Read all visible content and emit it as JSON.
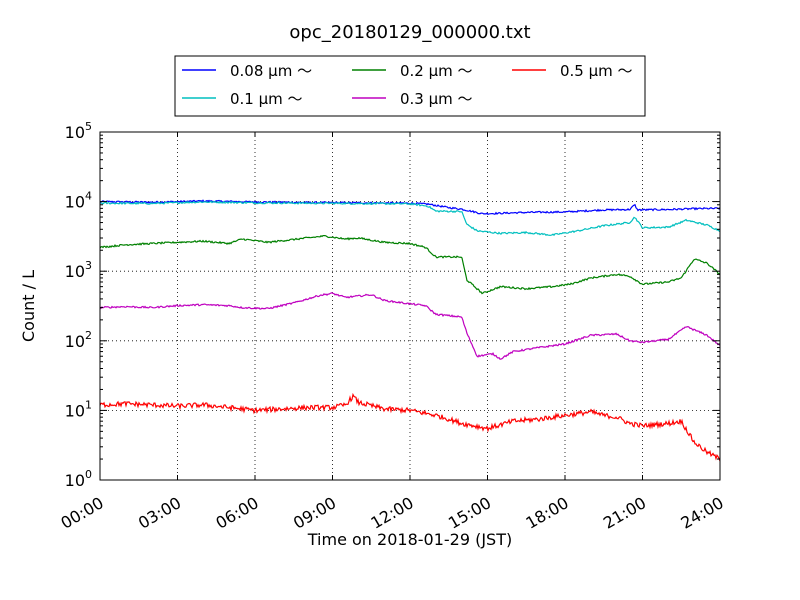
{
  "chart_data": {
    "type": "line",
    "title": "opc_20180129_000000.txt",
    "xlabel": "Time on 2018-01-29 (JST)",
    "ylabel": "Count / L",
    "yscale": "log",
    "ylim": [
      1,
      100000
    ],
    "xlim": [
      0,
      24
    ],
    "x_ticks": [
      "00:00",
      "03:00",
      "06:00",
      "09:00",
      "12:00",
      "15:00",
      "18:00",
      "21:00",
      "24:00"
    ],
    "y_ticks": [
      {
        "base": "10",
        "exp": "0"
      },
      {
        "base": "10",
        "exp": "1"
      },
      {
        "base": "10",
        "exp": "2"
      },
      {
        "base": "10",
        "exp": "3"
      },
      {
        "base": "10",
        "exp": "4"
      },
      {
        "base": "10",
        "exp": "5"
      }
    ],
    "grid": true,
    "legend_position": "top-center (outside, above plot)",
    "series": [
      {
        "name": "0.08 μm ～",
        "color": "#0000ff",
        "points": [
          [
            0,
            10000
          ],
          [
            2,
            9800
          ],
          [
            4,
            10200
          ],
          [
            6,
            9900
          ],
          [
            8,
            9700
          ],
          [
            10,
            9600
          ],
          [
            12,
            9500
          ],
          [
            12.7,
            9200
          ],
          [
            13.5,
            8200
          ],
          [
            14,
            7800
          ],
          [
            14.8,
            6700
          ],
          [
            15.5,
            6800
          ],
          [
            16.5,
            7000
          ],
          [
            18,
            7100
          ],
          [
            19.5,
            7600
          ],
          [
            20.5,
            7700
          ],
          [
            20.7,
            9000
          ],
          [
            20.8,
            7600
          ],
          [
            22,
            7700
          ],
          [
            23,
            7900
          ],
          [
            24,
            8000
          ]
        ]
      },
      {
        "name": "0.1 μm ～",
        "color": "#00bfbf",
        "points": [
          [
            0,
            9500
          ],
          [
            2,
            9400
          ],
          [
            4,
            9900
          ],
          [
            6,
            9600
          ],
          [
            8,
            9500
          ],
          [
            10,
            9400
          ],
          [
            12,
            9300
          ],
          [
            12.7,
            8600
          ],
          [
            13,
            7300
          ],
          [
            14,
            7200
          ],
          [
            14.2,
            4700
          ],
          [
            14.6,
            3800
          ],
          [
            15.5,
            3500
          ],
          [
            16.5,
            3600
          ],
          [
            17.5,
            3300
          ],
          [
            18.5,
            3800
          ],
          [
            19.5,
            4500
          ],
          [
            20.5,
            5000
          ],
          [
            20.7,
            6000
          ],
          [
            21,
            4200
          ],
          [
            22,
            4300
          ],
          [
            22.7,
            5400
          ],
          [
            23.5,
            4600
          ],
          [
            24,
            3800
          ]
        ]
      },
      {
        "name": "0.2 μm ～",
        "color": "#008000",
        "points": [
          [
            0,
            2200
          ],
          [
            1,
            2400
          ],
          [
            2,
            2500
          ],
          [
            3,
            2600
          ],
          [
            4,
            2700
          ],
          [
            5,
            2500
          ],
          [
            5.5,
            2900
          ],
          [
            6.5,
            2600
          ],
          [
            8,
            3000
          ],
          [
            8.7,
            3200
          ],
          [
            9.5,
            2900
          ],
          [
            10,
            3000
          ],
          [
            11,
            2600
          ],
          [
            12,
            2500
          ],
          [
            12.6,
            2200
          ],
          [
            13,
            1600
          ],
          [
            14,
            1600
          ],
          [
            14.2,
            750
          ],
          [
            14.8,
            480
          ],
          [
            15.5,
            600
          ],
          [
            16.5,
            560
          ],
          [
            17.5,
            600
          ],
          [
            18.2,
            650
          ],
          [
            19,
            800
          ],
          [
            20,
            900
          ],
          [
            20.5,
            850
          ],
          [
            21,
            650
          ],
          [
            22,
            700
          ],
          [
            22.5,
            800
          ],
          [
            23,
            1500
          ],
          [
            23.5,
            1300
          ],
          [
            24,
            900
          ]
        ]
      },
      {
        "name": "0.3 μm ～",
        "color": "#bf00bf",
        "points": [
          [
            0,
            300
          ],
          [
            1,
            310
          ],
          [
            2,
            300
          ],
          [
            3,
            320
          ],
          [
            4,
            330
          ],
          [
            5,
            320
          ],
          [
            5.5,
            300
          ],
          [
            6.5,
            290
          ],
          [
            7.5,
            350
          ],
          [
            8.5,
            450
          ],
          [
            9,
            480
          ],
          [
            9.5,
            420
          ],
          [
            10.5,
            460
          ],
          [
            11,
            380
          ],
          [
            12,
            340
          ],
          [
            12.6,
            320
          ],
          [
            13,
            240
          ],
          [
            14,
            220
          ],
          [
            14.2,
            130
          ],
          [
            14.6,
            60
          ],
          [
            15.2,
            65
          ],
          [
            15.5,
            55
          ],
          [
            16,
            70
          ],
          [
            17,
            80
          ],
          [
            18,
            90
          ],
          [
            19,
            120
          ],
          [
            20,
            125
          ],
          [
            20.5,
            100
          ],
          [
            21,
            95
          ],
          [
            22,
            105
          ],
          [
            22.7,
            160
          ],
          [
            23.5,
            120
          ],
          [
            24,
            85
          ]
        ]
      },
      {
        "name": "0.5 μm ～",
        "color": "#ff0000",
        "points": [
          [
            0,
            12
          ],
          [
            1,
            12.5
          ],
          [
            2,
            12
          ],
          [
            3,
            11.5
          ],
          [
            4,
            12
          ],
          [
            5,
            11
          ],
          [
            6,
            10
          ],
          [
            7,
            10.5
          ],
          [
            8,
            11
          ],
          [
            9,
            11
          ],
          [
            9.5,
            12
          ],
          [
            9.8,
            16
          ],
          [
            10,
            13
          ],
          [
            11,
            10.5
          ],
          [
            12,
            10
          ],
          [
            13,
            8.5
          ],
          [
            13.5,
            7.5
          ],
          [
            14,
            6.5
          ],
          [
            14.5,
            6
          ],
          [
            15,
            5.5
          ],
          [
            16,
            7
          ],
          [
            17,
            7.5
          ],
          [
            18,
            8.5
          ],
          [
            19,
            9.5
          ],
          [
            19.5,
            8.5
          ],
          [
            20,
            8
          ],
          [
            20.5,
            6.5
          ],
          [
            21,
            6
          ],
          [
            22,
            6.5
          ],
          [
            22.5,
            7
          ],
          [
            23,
            3.5
          ],
          [
            23.5,
            2.5
          ],
          [
            24,
            2
          ]
        ]
      }
    ]
  }
}
